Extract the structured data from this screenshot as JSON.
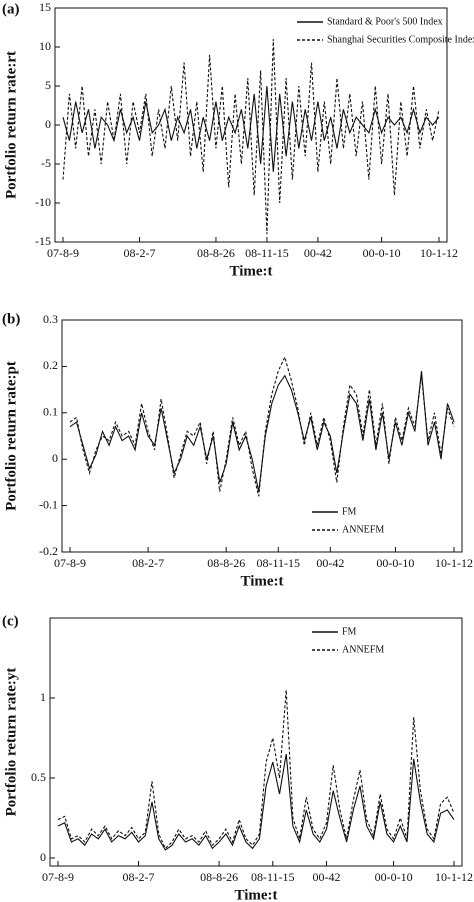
{
  "chart_data": [
    {
      "type": "line",
      "panel_label": "(a)",
      "xlabel": "Time:t",
      "ylabel": "Portfolio return rate:rt",
      "categories": [
        "07-8-9",
        null,
        null,
        null,
        null,
        null,
        null,
        null,
        null,
        null,
        null,
        null,
        "08-2-7",
        null,
        null,
        null,
        null,
        null,
        null,
        null,
        null,
        null,
        null,
        null,
        "08-8-26",
        null,
        null,
        null,
        null,
        null,
        null,
        null,
        "08-11-15",
        null,
        null,
        null,
        null,
        null,
        null,
        null,
        "00-42",
        null,
        null,
        null,
        null,
        null,
        null,
        null,
        null,
        null,
        "00-0-10",
        null,
        null,
        null,
        null,
        null,
        null,
        null,
        null,
        "10-1-12"
      ],
      "series": [
        {
          "name": "Standard & Poor's 500 Index",
          "color": "#111111",
          "linestyle": "solid",
          "values": [
            1,
            -2,
            3,
            -1,
            2,
            -3,
            1,
            0,
            -2,
            2,
            -1,
            1,
            -2,
            3,
            -1,
            0,
            2,
            -2,
            1,
            -1,
            2,
            -3,
            1,
            -2,
            3,
            -2,
            1,
            -1,
            2,
            -3,
            4,
            -5,
            5,
            -6,
            4,
            -4,
            3,
            -3,
            2,
            -2,
            3,
            -2,
            1,
            -3,
            2,
            -1,
            1,
            0,
            -1,
            2,
            -1,
            1,
            0,
            1,
            -1,
            2,
            -1,
            1,
            0,
            1
          ]
        },
        {
          "name": "Shanghai Securities Composite Index",
          "color": "#111111",
          "linestyle": "dashed",
          "values": [
            -7,
            4,
            -3,
            5,
            -4,
            2,
            -5,
            3,
            -2,
            4,
            -5,
            3,
            -1,
            4,
            -4,
            2,
            -3,
            5,
            -2,
            8,
            -4,
            3,
            -6,
            9,
            -3,
            5,
            -8,
            4,
            -5,
            6,
            -9,
            7,
            -14,
            11,
            -10,
            6,
            -7,
            5,
            -4,
            8,
            -6,
            3,
            -5,
            6,
            -3,
            4,
            -4,
            3,
            -7,
            5,
            -5,
            4,
            -9,
            3,
            -4,
            5,
            -3,
            2,
            -2,
            2
          ]
        }
      ],
      "ylim": [
        -15,
        15
      ],
      "yticks": [
        -15,
        -10,
        -5,
        0,
        5,
        10,
        15
      ],
      "legend": "upper right"
    },
    {
      "type": "line",
      "panel_label": "(b)",
      "xlabel": "Time:t",
      "ylabel": "Portfolio return rate:pt",
      "categories": [
        "07-8-9",
        null,
        null,
        null,
        null,
        null,
        null,
        null,
        null,
        null,
        null,
        null,
        "08-2-7",
        null,
        null,
        null,
        null,
        null,
        null,
        null,
        null,
        null,
        null,
        null,
        "08-8-26",
        null,
        null,
        null,
        null,
        null,
        null,
        null,
        "08-11-15",
        null,
        null,
        null,
        null,
        null,
        null,
        null,
        "00-42",
        null,
        null,
        null,
        null,
        null,
        null,
        null,
        null,
        null,
        "00-0-10",
        null,
        null,
        null,
        null,
        null,
        null,
        null,
        null,
        "10-1-12"
      ],
      "series": [
        {
          "name": "FM",
          "color": "#111111",
          "linestyle": "solid",
          "values": [
            0.07,
            0.08,
            0.03,
            -0.02,
            0.01,
            0.06,
            0.03,
            0.07,
            0.04,
            0.05,
            0.02,
            0.1,
            0.05,
            0.03,
            0.11,
            0.04,
            -0.03,
            0.0,
            0.05,
            0.03,
            0.07,
            0.0,
            0.05,
            -0.05,
            -0.01,
            0.08,
            0.02,
            0.05,
            0.0,
            -0.07,
            0.05,
            0.12,
            0.16,
            0.18,
            0.15,
            0.1,
            0.04,
            0.09,
            0.02,
            0.08,
            0.05,
            -0.03,
            0.06,
            0.14,
            0.12,
            0.04,
            0.13,
            0.02,
            0.1,
            0.0,
            0.08,
            0.03,
            0.1,
            0.06,
            0.19,
            0.03,
            0.08,
            0.0,
            0.12,
            0.08
          ]
        },
        {
          "name": "ANNEFM",
          "color": "#111111",
          "linestyle": "dashed",
          "values": [
            0.08,
            0.09,
            0.02,
            -0.03,
            0.02,
            0.05,
            0.04,
            0.08,
            0.05,
            0.06,
            0.03,
            0.12,
            0.06,
            0.02,
            0.13,
            0.05,
            -0.04,
            0.01,
            0.06,
            0.05,
            0.08,
            -0.01,
            0.06,
            -0.07,
            0.0,
            0.09,
            0.03,
            0.06,
            -0.02,
            -0.08,
            0.06,
            0.14,
            0.19,
            0.22,
            0.17,
            0.11,
            0.03,
            0.1,
            0.03,
            0.09,
            0.04,
            -0.05,
            0.07,
            0.16,
            0.14,
            0.05,
            0.15,
            0.03,
            0.12,
            -0.01,
            0.09,
            0.04,
            0.11,
            0.07,
            0.18,
            0.04,
            0.1,
            0.01,
            0.11,
            0.07
          ]
        }
      ],
      "ylim": [
        -0.2,
        0.3
      ],
      "yticks": [
        -0.2,
        -0.1,
        0,
        0.1,
        0.2,
        0.3
      ],
      "legend": "lower right"
    },
    {
      "type": "line",
      "panel_label": "(c)",
      "xlabel": "Time:t",
      "ylabel": "Portfolio return rate:yt",
      "categories": [
        "07-8-9",
        null,
        null,
        null,
        null,
        null,
        null,
        null,
        null,
        null,
        null,
        null,
        "08-2-7",
        null,
        null,
        null,
        null,
        null,
        null,
        null,
        null,
        null,
        null,
        null,
        "08-8-26",
        null,
        null,
        null,
        null,
        null,
        null,
        null,
        "08-11-15",
        null,
        null,
        null,
        null,
        null,
        null,
        null,
        "00-42",
        null,
        null,
        null,
        null,
        null,
        null,
        null,
        null,
        null,
        "00-0-10",
        null,
        null,
        null,
        null,
        null,
        null,
        null,
        null,
        "10-1-12"
      ],
      "series": [
        {
          "name": "FM",
          "color": "#111111",
          "linestyle": "solid",
          "values": [
            0.2,
            0.22,
            0.1,
            0.12,
            0.08,
            0.15,
            0.12,
            0.18,
            0.1,
            0.14,
            0.12,
            0.16,
            0.1,
            0.14,
            0.35,
            0.12,
            0.05,
            0.08,
            0.15,
            0.1,
            0.12,
            0.08,
            0.14,
            0.06,
            0.1,
            0.15,
            0.08,
            0.2,
            0.1,
            0.06,
            0.12,
            0.45,
            0.6,
            0.4,
            0.65,
            0.2,
            0.1,
            0.3,
            0.15,
            0.1,
            0.18,
            0.42,
            0.25,
            0.1,
            0.3,
            0.45,
            0.2,
            0.12,
            0.35,
            0.15,
            0.1,
            0.2,
            0.1,
            0.62,
            0.35,
            0.15,
            0.1,
            0.28,
            0.3,
            0.24
          ]
        },
        {
          "name": "ANNEFM",
          "color": "#111111",
          "linestyle": "dashed",
          "values": [
            0.24,
            0.26,
            0.12,
            0.14,
            0.1,
            0.18,
            0.14,
            0.2,
            0.12,
            0.17,
            0.14,
            0.19,
            0.12,
            0.16,
            0.48,
            0.15,
            0.06,
            0.1,
            0.18,
            0.12,
            0.14,
            0.1,
            0.17,
            0.08,
            0.12,
            0.18,
            0.1,
            0.24,
            0.12,
            0.08,
            0.15,
            0.6,
            0.75,
            0.5,
            1.05,
            0.25,
            0.12,
            0.38,
            0.18,
            0.12,
            0.22,
            0.58,
            0.3,
            0.12,
            0.36,
            0.55,
            0.24,
            0.14,
            0.4,
            0.18,
            0.12,
            0.25,
            0.12,
            0.88,
            0.42,
            0.18,
            0.12,
            0.34,
            0.38,
            0.28
          ]
        }
      ],
      "ylim": [
        -0.05,
        1.5
      ],
      "yticks": [
        0,
        0.5,
        1
      ],
      "legend": "upper right"
    }
  ]
}
